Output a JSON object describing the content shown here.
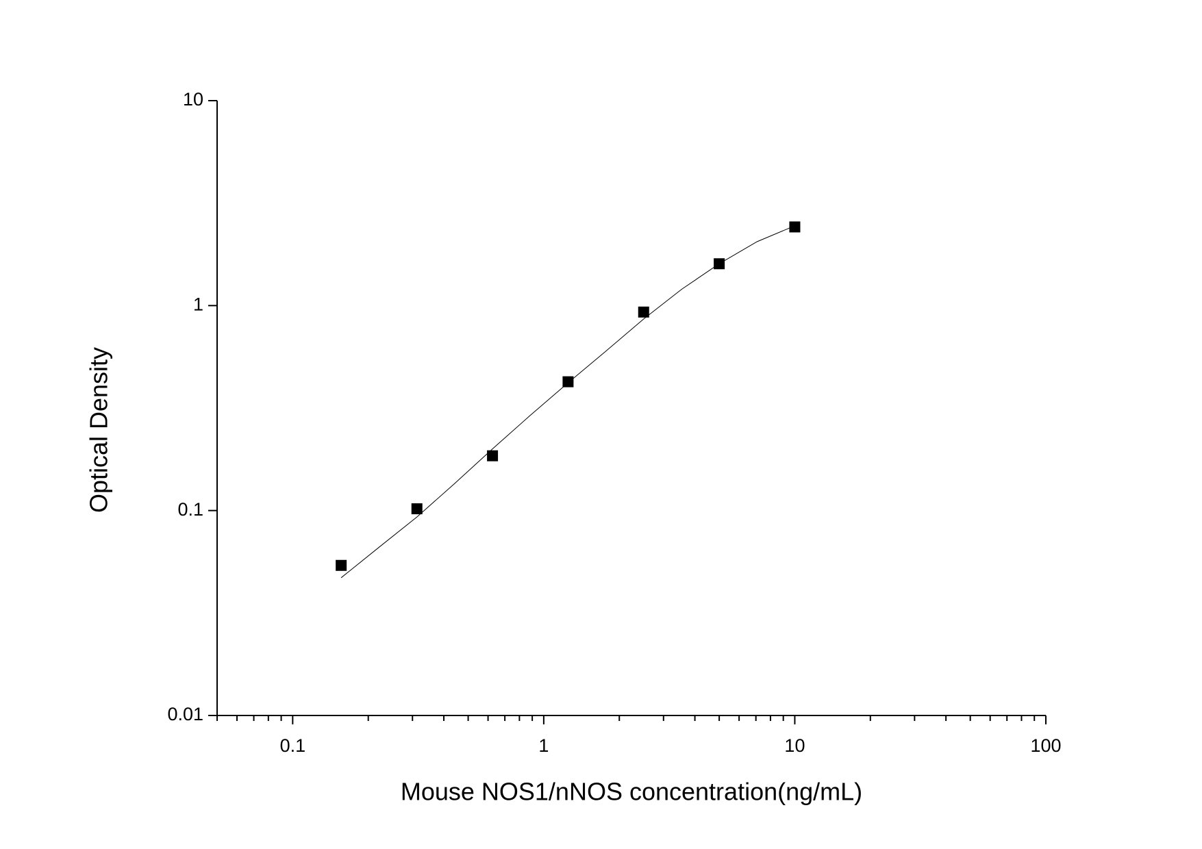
{
  "chart_data": {
    "type": "scatter",
    "x_label": "Mouse NOS1/nNOS concentration(ng/mL)",
    "y_label": "Optical Density",
    "xlog": true,
    "ylog": true,
    "xlim": [
      0.05,
      100
    ],
    "ylim": [
      0.01,
      10
    ],
    "xticks": [
      0.1,
      1,
      10,
      100
    ],
    "xminorticks": [
      0.05,
      0.06,
      0.07,
      0.08,
      0.09,
      0.2,
      0.3,
      0.4,
      0.5,
      0.6,
      0.7,
      0.8,
      0.9,
      2,
      3,
      4,
      5,
      6,
      7,
      8,
      9,
      20,
      30,
      40,
      50,
      60,
      70,
      80,
      90
    ],
    "yticks": [
      0.01,
      0.1,
      1,
      10
    ],
    "color": "#000000",
    "x": [
      0.156,
      0.3125,
      0.625,
      1.25,
      2.5,
      5,
      10
    ],
    "values": [
      0.054,
      0.102,
      0.185,
      0.425,
      0.93,
      1.6,
      2.42
    ],
    "fit": {
      "x": [
        0.156,
        0.22,
        0.3125,
        0.44,
        0.625,
        0.88,
        1.25,
        1.77,
        2.5,
        3.54,
        5,
        7.07,
        10
      ],
      "values": [
        0.047,
        0.066,
        0.093,
        0.135,
        0.2,
        0.29,
        0.42,
        0.6,
        0.86,
        1.2,
        1.6,
        2.05,
        2.45
      ]
    }
  }
}
